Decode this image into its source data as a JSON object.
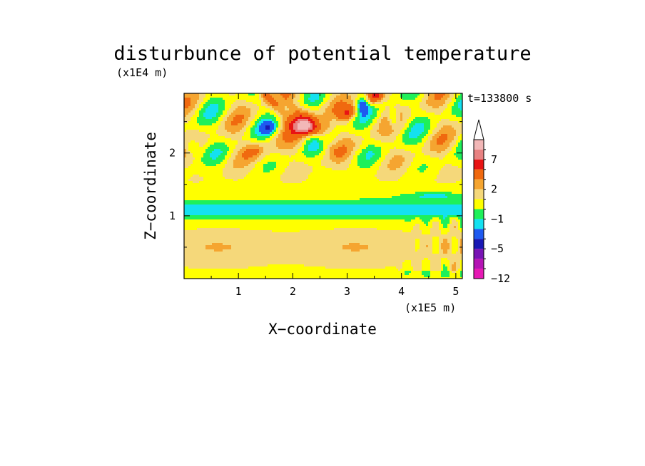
{
  "chart_data": {
    "type": "heatmap",
    "title": "disturbunce of potential temperature",
    "xlabel": "X−coordinate",
    "ylabel": "Z−coordinate",
    "x_scale_note": "(x1E5 m)",
    "y_scale_note": "(x1E4 m)",
    "time_label": "t=133800 s",
    "xlim": [
      0,
      5.12
    ],
    "ylim": [
      0,
      2.95
    ],
    "x_ticks": [
      1,
      2,
      3,
      4,
      5
    ],
    "y_ticks": [
      1,
      2
    ],
    "grid": false,
    "colorbar": {
      "position": "right",
      "extend_top": true,
      "tick_labels": [
        {
          "value": 7,
          "label": "7"
        },
        {
          "value": 2,
          "label": "2"
        },
        {
          "value": -1,
          "label": "−1"
        },
        {
          "value": -5,
          "label": "−5"
        },
        {
          "value": -12,
          "label": "−12"
        }
      ],
      "levels": [
        {
          "upper": 12,
          "color": "#f2b7b7"
        },
        {
          "upper": 9,
          "color": "#e88282"
        },
        {
          "upper": 7,
          "color": "#e81414"
        },
        {
          "upper": 5,
          "color": "#f0690f"
        },
        {
          "upper": 3,
          "color": "#f5a530"
        },
        {
          "upper": 2,
          "color": "#f5d87a"
        },
        {
          "upper": 1,
          "color": "#ffff00"
        },
        {
          "upper": 0,
          "color": "#1ef05a"
        },
        {
          "upper": -1,
          "color": "#14e1f0"
        },
        {
          "upper": -2,
          "color": "#1e5af0"
        },
        {
          "upper": -4,
          "color": "#1919b4"
        },
        {
          "upper": -5,
          "color": "#7814b4"
        },
        {
          "upper": -7,
          "color": "#b414b4"
        },
        {
          "upper": -9,
          "color": "#e619b4"
        }
      ]
    },
    "features": [
      {
        "x": 2.2,
        "z": 2.4,
        "value": 8,
        "note": "warm core maximum"
      },
      {
        "x": 1.5,
        "z": 2.4,
        "value": -3
      },
      {
        "x": 3.3,
        "z": 2.7,
        "value": -3
      },
      {
        "x": 2.5,
        "z": 1.1,
        "value": -1,
        "note": "cool layer near z=1.1"
      },
      {
        "x": 4.7,
        "z": 1.3,
        "value": -3
      },
      {
        "x": 2.5,
        "z": 0.5,
        "value": 1.5
      }
    ]
  }
}
